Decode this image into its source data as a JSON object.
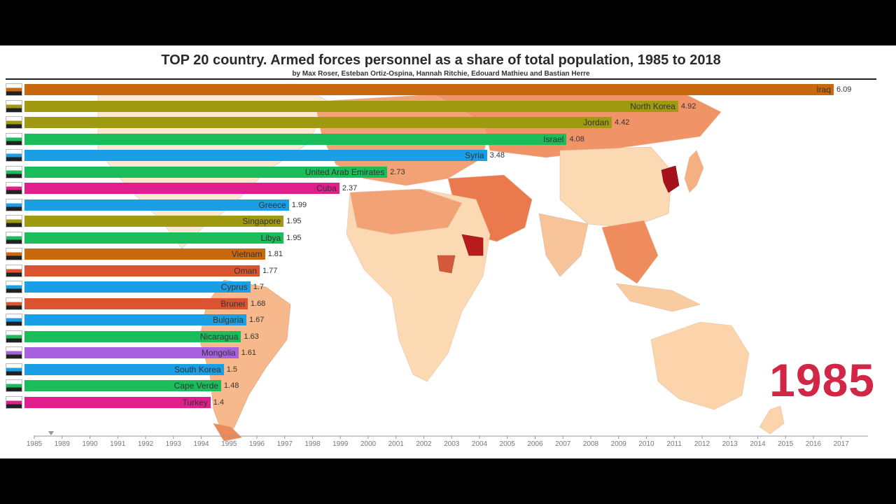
{
  "title": "TOP 20 country. Armed forces personnel as a share of total population, 1985 to 2018",
  "subtitle": "by Max Roser, Esteban Ortiz-Ospina, Hannah Ritchie, Edouard Mathieu and Bastian Herre",
  "year": "1985",
  "colors": {
    "orange": "#c8680f",
    "olive": "#a09a10",
    "green": "#1bbc5a",
    "blue": "#1a9fe6",
    "pink": "#e11e8c",
    "red": "#d9542f",
    "purple": "#a660e0",
    "accent_year": "#d12645"
  },
  "chart_data": {
    "type": "bar",
    "orientation": "horizontal",
    "xlim": [
      0,
      6.09
    ],
    "categories": [
      "Iraq",
      "North Korea",
      "Jordan",
      "Israel",
      "Syria",
      "United Arab Emirates",
      "Cuba",
      "Greece",
      "Singapore",
      "Libya",
      "Vietnam",
      "Oman",
      "Cyprus",
      "Brunei",
      "Bulgaria",
      "Nicaragua",
      "Mongolia",
      "South Korea",
      "Cape Verde",
      "Turkey"
    ],
    "values": [
      6.09,
      4.92,
      4.42,
      4.08,
      3.48,
      2.73,
      2.37,
      1.99,
      1.95,
      1.95,
      1.81,
      1.77,
      1.7,
      1.68,
      1.67,
      1.63,
      1.61,
      1.5,
      1.48,
      1.4
    ],
    "value_labels": [
      "6.09",
      "4.92",
      "4.42",
      "4.08",
      "3.48",
      "2.73",
      "2.37",
      "1.99",
      "1.95",
      "1.95",
      "1.81",
      "1.77",
      "1.7",
      "1.68",
      "1.67",
      "1.63",
      "1.61",
      "1.5",
      "1.48",
      "1.4"
    ],
    "bar_colors": [
      "#c8680f",
      "#a09a10",
      "#a09a10",
      "#1bbc5a",
      "#1a9fe6",
      "#1bbc5a",
      "#e11e8c",
      "#1a9fe6",
      "#a09a10",
      "#1bbc5a",
      "#c8680f",
      "#d9542f",
      "#1a9fe6",
      "#d9542f",
      "#1a9fe6",
      "#1bbc5a",
      "#a660e0",
      "#1a9fe6",
      "#1bbc5a",
      "#e11e8c"
    ],
    "timeline_years": [
      "1985",
      "1989",
      "1990",
      "1991",
      "1992",
      "1993",
      "1994",
      "1995",
      "1996",
      "1997",
      "1998",
      "1999",
      "2000",
      "2001",
      "2002",
      "2003",
      "2004",
      "2005",
      "2006",
      "2007",
      "2008",
      "2009",
      "2010",
      "2011",
      "2012",
      "2013",
      "2014",
      "2015",
      "2016",
      "2017"
    ]
  }
}
